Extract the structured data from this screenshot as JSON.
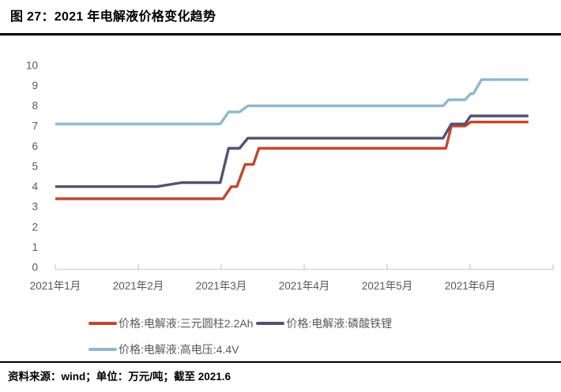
{
  "page": {
    "title": "图 27：2021 年电解液价格变化趋势",
    "source_note": "资料来源：wind；单位：万元/吨；截至 2021.6"
  },
  "chart_data": {
    "type": "line",
    "title": "2021 年电解液价格变化趋势",
    "unit": "万元/吨",
    "xlabel": "",
    "ylabel": "",
    "ylim": [
      0,
      10
    ],
    "y_ticks": [
      0,
      1,
      2,
      3,
      4,
      5,
      6,
      7,
      8,
      9,
      10
    ],
    "x_tick_labels": [
      "2021年1月",
      "2021年2月",
      "2021年3月",
      "2021年4月",
      "2021年5月",
      "2021年6月"
    ],
    "x_domain_days": [
      0,
      181
    ],
    "data_end_day": 172,
    "grid": false,
    "legend_position": "bottom",
    "axis_color": "#D9D9D9",
    "tick_color": "#BFBFBF",
    "label_color": "#595959",
    "series": [
      {
        "name": "价格:电解液:三元圆柱2.2Ah",
        "color": "#C3472E",
        "points": [
          [
            0,
            3.4
          ],
          [
            61,
            3.4
          ],
          [
            64,
            4.0
          ],
          [
            66,
            4.0
          ],
          [
            69,
            5.1
          ],
          [
            72,
            5.1
          ],
          [
            74,
            5.9
          ],
          [
            142,
            5.9
          ],
          [
            144,
            7.0
          ],
          [
            149,
            7.0
          ],
          [
            151,
            7.2
          ],
          [
            172,
            7.2
          ]
        ]
      },
      {
        "name": "价格:电解液:磷酸铁锂",
        "color": "#57506F",
        "points": [
          [
            0,
            4.0
          ],
          [
            37,
            4.0
          ],
          [
            46,
            4.2
          ],
          [
            60,
            4.2
          ],
          [
            63,
            5.9
          ],
          [
            67,
            5.9
          ],
          [
            70,
            6.4
          ],
          [
            141,
            6.4
          ],
          [
            144,
            7.1
          ],
          [
            149,
            7.1
          ],
          [
            151,
            7.5
          ],
          [
            172,
            7.5
          ]
        ]
      },
      {
        "name": "价格:电解液:高电压:4.4V",
        "color": "#8FB8CB",
        "points": [
          [
            0,
            7.1
          ],
          [
            60,
            7.1
          ],
          [
            63,
            7.7
          ],
          [
            67,
            7.7
          ],
          [
            70,
            8.0
          ],
          [
            141,
            8.0
          ],
          [
            143,
            8.3
          ],
          [
            149,
            8.3
          ],
          [
            151,
            8.6
          ],
          [
            152,
            8.6
          ],
          [
            155,
            9.3
          ],
          [
            172,
            9.3
          ]
        ]
      }
    ]
  }
}
